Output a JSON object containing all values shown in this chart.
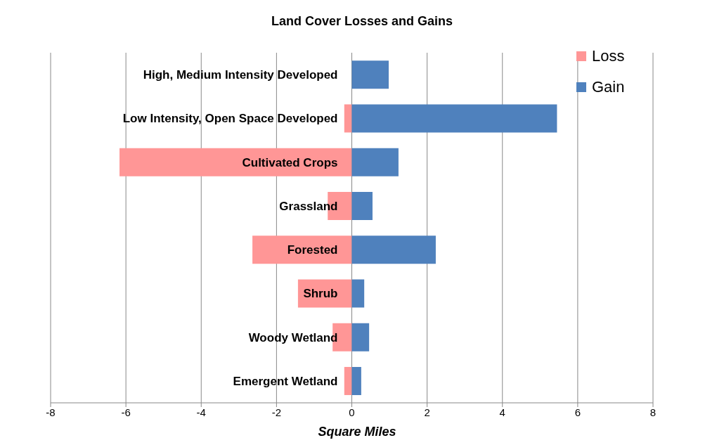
{
  "chart_data": {
    "type": "bar",
    "orientation": "horizontal",
    "stacked": true,
    "title": "Land Cover Losses and Gains",
    "xlabel": "Square Miles",
    "categories": [
      "High, Medium Intensity Developed",
      "Low Intensity, Open Space Developed",
      "Cultivated Crops",
      "Grassland",
      "Forested",
      "Shrub",
      "Woody Wetland",
      "Emergent Wetland"
    ],
    "series": [
      {
        "name": "Loss",
        "color": "#ff9696",
        "values": [
          0,
          -0.2,
          -6.17,
          -0.64,
          -2.64,
          -1.43,
          -0.51,
          -0.2
        ]
      },
      {
        "name": "Gain",
        "color": "#4f81bd",
        "values": [
          0.98,
          5.45,
          1.24,
          0.55,
          2.23,
          0.33,
          0.46,
          0.25
        ]
      }
    ],
    "xlim": [
      -8,
      8
    ],
    "xticks": [
      -8,
      -6,
      -4,
      -2,
      0,
      2,
      4,
      6,
      8
    ],
    "grid": "x",
    "legend": "top right"
  }
}
